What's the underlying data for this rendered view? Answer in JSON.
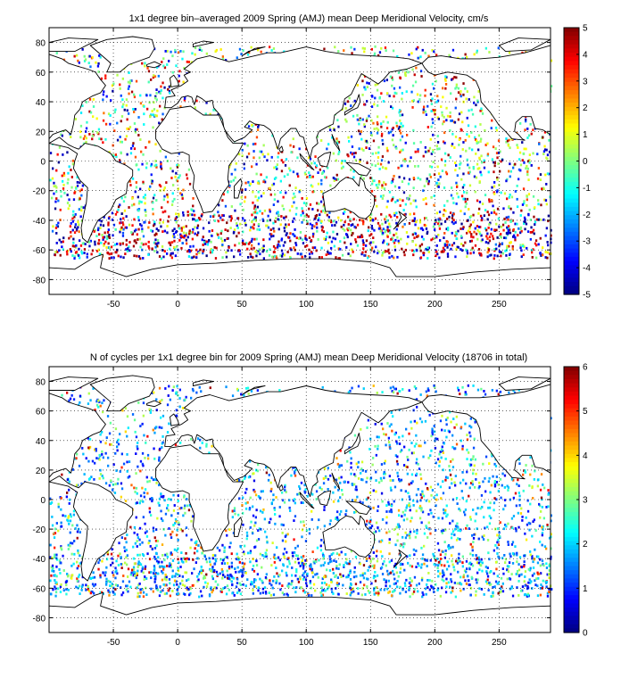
{
  "panels": [
    {
      "id": "velocity",
      "title": "1x1 degree bin–averaged 2009 Spring (AMJ) mean Deep Meridional Velocity, cm/s",
      "xlim": [
        -100,
        290
      ],
      "ylim": [
        -90,
        90
      ],
      "xticks": [
        "-50",
        "0",
        "50",
        "100",
        "150",
        "200",
        "250"
      ],
      "yticks": [
        "80",
        "60",
        "40",
        "20",
        "0",
        "-20",
        "-40",
        "-60",
        "-80"
      ],
      "colorbar": {
        "min": -5,
        "max": 5,
        "ticks": [
          "5",
          "4",
          "3",
          "2",
          "1",
          "0",
          "-1",
          "-2",
          "-3",
          "-4",
          "-5"
        ]
      },
      "field": "signed"
    },
    {
      "id": "cycles",
      "title": "N of cycles per 1x1 degree bin for 2009 Spring (AMJ) mean Deep Meridional Velocity (18706 in total)",
      "xlim": [
        -100,
        290
      ],
      "ylim": [
        -90,
        90
      ],
      "xticks": [
        "-50",
        "0",
        "50",
        "100",
        "150",
        "200",
        "250"
      ],
      "yticks": [
        "80",
        "60",
        "40",
        "20",
        "0",
        "-20",
        "-40",
        "-60",
        "-80"
      ],
      "colorbar": {
        "min": 0,
        "max": 6,
        "ticks": [
          "6",
          "5",
          "4",
          "3",
          "2",
          "1",
          "0"
        ]
      },
      "field": "count"
    }
  ],
  "colormap": "jet",
  "grid": "dotted"
}
